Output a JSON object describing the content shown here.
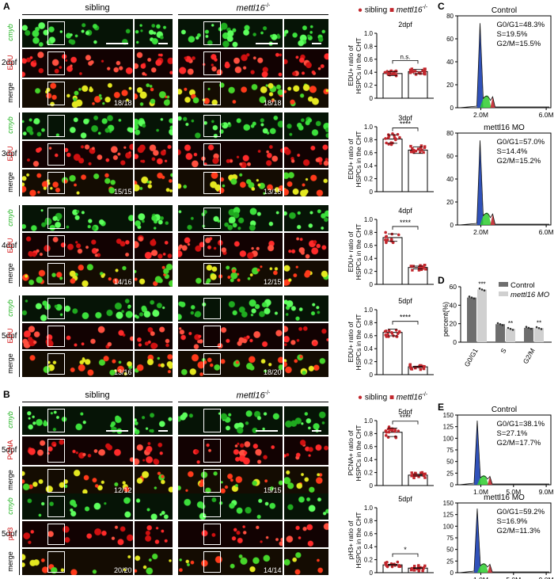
{
  "panels": {
    "A": "A",
    "B": "B",
    "C": "C",
    "D": "D",
    "E": "E"
  },
  "conditions": {
    "sibling": "sibling",
    "mutant": "mettl16"
  },
  "mutant_sup": "-/-",
  "days": {
    "d2": "2dpf",
    "d3": "3dpf",
    "d4": "4dpf",
    "d5": "5dpf"
  },
  "rows": {
    "cmyb": "cmyb",
    "edu": "EDU",
    "merge": "merge",
    "pcna": "PCNA",
    "ph3": "pH3"
  },
  "fractions": {
    "a2_sib": "18/18",
    "a2_mut": "18/18",
    "a3_sib": "15/15",
    "a3_mut": "13/15",
    "a4_sib": "14/16",
    "a4_mut": "12/15",
    "a5_sib": "13/16",
    "a5_mut": "18/20",
    "b1_sib": "12/12",
    "b1_mut": "15/15",
    "b2_sib": "20/20",
    "b2_mut": "14/14"
  },
  "legend": {
    "sibling": "sibling",
    "mutant": "mettl16"
  },
  "colors": {
    "red": "#c1272d",
    "green": "#2ecc2e",
    "blue": "#1a3fb3",
    "dark_gray": "#6e6e6e",
    "light_gray": "#d0d0d0"
  },
  "chart_data": [
    {
      "type": "scatter",
      "panel": "A",
      "title": "2dpf",
      "ylabel_line1": "EDU+ ratio of",
      "ylabel_line2": "HSPCs in the CHT",
      "ylim": [
        0,
        1.0
      ],
      "yticks": [
        "0",
        "0.2",
        "0.4",
        "0.6",
        "0.8",
        "1.0"
      ],
      "categories": [
        "sibling",
        "mettl16"
      ],
      "means": [
        0.38,
        0.41
      ],
      "significance": "n.s."
    },
    {
      "type": "scatter",
      "panel": "A",
      "title": "3dpf",
      "ylabel_line1": "EDU+ ratio of",
      "ylabel_line2": "HSPCs in the CHT",
      "ylim": [
        0,
        1.0
      ],
      "yticks": [
        "0",
        "0.2",
        "0.4",
        "0.6",
        "0.8",
        "1.0"
      ],
      "categories": [
        "sibling",
        "mettl16"
      ],
      "means": [
        0.81,
        0.64
      ],
      "significance": "****"
    },
    {
      "type": "scatter",
      "panel": "A",
      "title": "4dpf",
      "ylabel_line1": "EDU+ ratio of",
      "ylabel_line2": "HSPCs in the CHT",
      "ylim": [
        0,
        1.0
      ],
      "yticks": [
        "0",
        "0.2",
        "0.4",
        "0.6",
        "0.8",
        "1.0"
      ],
      "categories": [
        "sibling",
        "mettl16"
      ],
      "means": [
        0.72,
        0.26
      ],
      "significance": "****"
    },
    {
      "type": "scatter",
      "panel": "A",
      "title": "5dpf",
      "ylabel_line1": "EDU+ ratio of",
      "ylabel_line2": "HSPCs in the CHT",
      "ylim": [
        0,
        1.0
      ],
      "yticks": [
        "0",
        "0.2",
        "0.4",
        "0.6",
        "0.8",
        "1.0"
      ],
      "categories": [
        "sibling",
        "mettl16"
      ],
      "means": [
        0.65,
        0.12
      ],
      "significance": "****"
    },
    {
      "type": "scatter",
      "panel": "B",
      "title": "5dpf",
      "ylabel_line1": "PCNA+ ratio of",
      "ylabel_line2": "HSPCs in the CHT",
      "ylim": [
        0,
        1.0
      ],
      "yticks": [
        "0",
        "0.2",
        "0.4",
        "0.6",
        "0.8",
        "1.0"
      ],
      "categories": [
        "sibling",
        "mettl16"
      ],
      "means": [
        0.82,
        0.16
      ],
      "significance": "****"
    },
    {
      "type": "scatter",
      "panel": "B",
      "title": "5dpf",
      "ylabel_line1": "pH3+ ratio of",
      "ylabel_line2": "HSPCs in the CHT",
      "ylim": [
        0,
        1.0
      ],
      "yticks": [
        "0",
        "0.2",
        "0.4",
        "0.6",
        "0.8",
        "1.0"
      ],
      "categories": [
        "sibling",
        "mettl16"
      ],
      "means": [
        0.12,
        0.07
      ],
      "significance": "*"
    },
    {
      "type": "area",
      "panel": "C",
      "title": "Control",
      "stats": [
        "G0/G1=48.3%",
        "S=19.5%",
        "G2/M=15.5%"
      ],
      "yticks": [
        "0",
        "20",
        "40",
        "60",
        "80"
      ],
      "xticks": [
        "2.0M",
        "6.0M"
      ],
      "ymax": 80
    },
    {
      "type": "area",
      "panel": "C",
      "title": "mettl16 MO",
      "stats": [
        "G0/G1=57.0%",
        "S=14.4%",
        "G2/M=15.2%"
      ],
      "yticks": [
        "0",
        "20",
        "40",
        "60",
        "80"
      ],
      "xticks": [
        "2.0M",
        "6.0M"
      ],
      "ymax": 80
    },
    {
      "type": "bar",
      "panel": "D",
      "ylabel": "percent(%)",
      "ylim": [
        0,
        60
      ],
      "yticks": [
        "0",
        "20",
        "40",
        "60"
      ],
      "categories": [
        "G0/G1",
        "S",
        "G2/M"
      ],
      "series": [
        {
          "name": "Control",
          "values": [
            48.3,
            19.5,
            15.5
          ]
        },
        {
          "name": "mettl16 MO",
          "values": [
            57.0,
            14.4,
            15.2
          ]
        }
      ],
      "significance": [
        "***",
        "**",
        "**"
      ]
    },
    {
      "type": "area",
      "panel": "E",
      "title": "Control",
      "stats": [
        "G0/G1=38.1%",
        "S=27.1%",
        "G2/M=17.7%"
      ],
      "yticks": [
        "0",
        "25",
        "50",
        "75",
        "100",
        "125",
        "150"
      ],
      "xticks": [
        "1.0M",
        "5.0M",
        "9.0M"
      ],
      "ymax": 150
    },
    {
      "type": "area",
      "panel": "E",
      "title": "mettl16 MO",
      "stats": [
        "G0/G1=59.2%",
        "S=16.9%",
        "G2/M=11.3%"
      ],
      "yticks": [
        "0",
        "25",
        "50",
        "75",
        "100",
        "125",
        "150"
      ],
      "xticks": [
        "1.0M",
        "5.0M",
        "9.0M"
      ],
      "ymax": 150
    }
  ]
}
